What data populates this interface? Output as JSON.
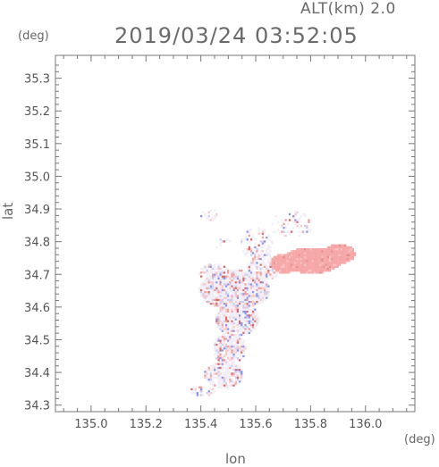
{
  "header": {
    "altitude_label": "ALT(km)",
    "altitude_value": "2.0",
    "timestamp": "2019/03/24 03:52:05"
  },
  "axes": {
    "x_unit": "(deg)",
    "y_unit": "(deg)",
    "x_label": "lon",
    "y_label": "lat"
  },
  "chart_data": {
    "type": "heatmap",
    "title": "",
    "xlabel": "lon",
    "ylabel": "lat",
    "xlim": [
      134.87,
      136.18
    ],
    "ylim": [
      34.28,
      35.37
    ],
    "x_ticks": [
      "135.0",
      "135.2",
      "135.4",
      "135.6",
      "135.8",
      "136.0"
    ],
    "y_ticks": [
      "34.3",
      "34.4",
      "34.5",
      "34.6",
      "34.7",
      "34.8",
      "34.9",
      "35.0",
      "35.1",
      "35.2",
      "35.3"
    ],
    "grid": false,
    "colors": {
      "positive": "#f4a0a0",
      "negative": "#7d86e8",
      "neutral": "#f1ecf4",
      "axis": "#777777"
    }
  }
}
